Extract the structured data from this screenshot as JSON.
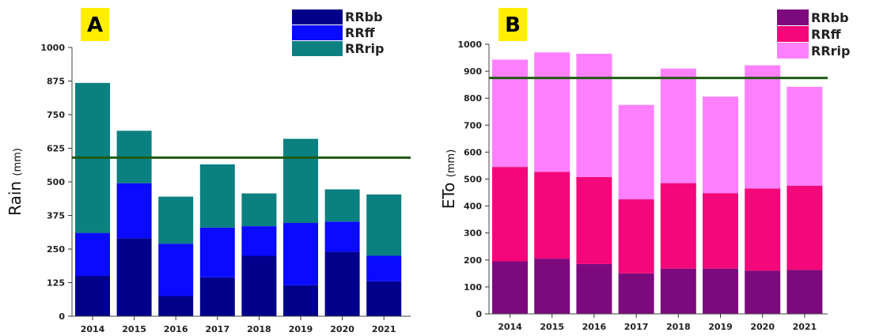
{
  "chart_data": [
    {
      "type": "bar",
      "stacked": true,
      "panel_label": "A",
      "ylabel": "Rain",
      "ylabel_unit": "(mm)",
      "categories": [
        "2014",
        "2015",
        "2016",
        "2017",
        "2018",
        "2019",
        "2020",
        "2021"
      ],
      "ylim": [
        0,
        1000
      ],
      "yticks": [
        0,
        125,
        250,
        375,
        500,
        625,
        750,
        875,
        1000
      ],
      "reference_line": 590,
      "reference_line_color": "#1f5a12",
      "grid": false,
      "legend_position": "top-right",
      "series": [
        {
          "name": "RRbb",
          "color": "#00008b",
          "values": [
            150,
            290,
            75,
            145,
            225,
            115,
            240,
            130
          ]
        },
        {
          "name": "RRff",
          "color": "#0a0aff",
          "values": [
            160,
            205,
            195,
            185,
            110,
            232,
            112,
            95
          ]
        },
        {
          "name": "RRrip",
          "color": "#0b8080",
          "values": [
            558,
            195,
            175,
            235,
            122,
            313,
            120,
            228
          ]
        }
      ]
    },
    {
      "type": "bar",
      "stacked": true,
      "panel_label": "B",
      "ylabel": "ETo",
      "ylabel_unit": "(mm)",
      "categories": [
        "2014",
        "2015",
        "2016",
        "2017",
        "2018",
        "2019",
        "2020",
        "2021"
      ],
      "ylim": [
        0,
        1000
      ],
      "yticks": [
        0,
        100,
        200,
        300,
        400,
        500,
        600,
        700,
        800,
        900,
        1000
      ],
      "reference_line": 875,
      "reference_line_color": "#1f5a12",
      "grid": false,
      "legend_position": "top-right",
      "series": [
        {
          "name": "RRbb",
          "color": "#7d0a7d",
          "values": [
            195,
            205,
            185,
            150,
            168,
            168,
            160,
            163
          ]
        },
        {
          "name": "RRff",
          "color": "#f4077a",
          "values": [
            350,
            322,
            323,
            275,
            317,
            280,
            305,
            312
          ]
        },
        {
          "name": "RRrip",
          "color": "#ff80ff",
          "values": [
            398,
            443,
            457,
            350,
            425,
            358,
            457,
            367
          ]
        }
      ]
    }
  ]
}
